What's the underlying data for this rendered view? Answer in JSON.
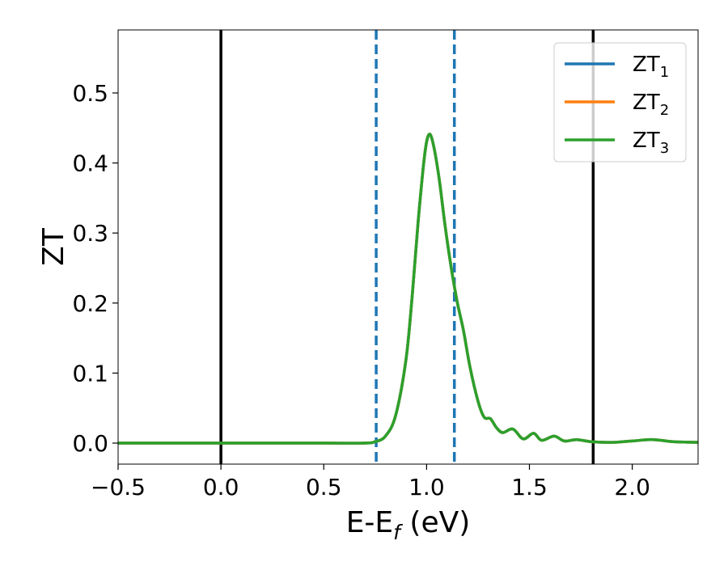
{
  "chart_data": {
    "type": "line",
    "xlabel": "E-E_f (eV)",
    "xlabel_parts": {
      "base": "E-E",
      "sub": "f",
      "tail": " (eV)"
    },
    "ylabel": "ZT",
    "xlim": [
      -0.5,
      2.32
    ],
    "ylim": [
      -0.03,
      0.59
    ],
    "xticks": [
      -0.5,
      0.0,
      0.5,
      1.0,
      1.5,
      2.0
    ],
    "xtick_labels": [
      "−0.5",
      "0.0",
      "0.5",
      "1.0",
      "1.5",
      "2.0"
    ],
    "yticks": [
      0.0,
      0.1,
      0.2,
      0.3,
      0.4,
      0.5
    ],
    "ytick_labels": [
      "0.0",
      "0.1",
      "0.2",
      "0.3",
      "0.4",
      "0.5"
    ],
    "grid": false,
    "legend_position": "top-right",
    "vlines": [
      {
        "x": 0.0,
        "style": "solid",
        "color": "#000000"
      },
      {
        "x": 1.81,
        "style": "solid",
        "color": "#000000"
      },
      {
        "x": 0.755,
        "style": "dashed",
        "color": "#1f77b4"
      },
      {
        "x": 1.135,
        "style": "dashed",
        "color": "#1f77b4"
      }
    ],
    "series": [
      {
        "name": "ZT_1",
        "label_base": "ZT",
        "label_sub": "1",
        "color": "#1f77b4"
      },
      {
        "name": "ZT_2",
        "label_base": "ZT",
        "label_sub": "2",
        "color": "#ff7f0e"
      },
      {
        "name": "ZT_3",
        "label_base": "ZT",
        "label_sub": "3",
        "color": "#2ca02c"
      }
    ],
    "x": [
      -0.5,
      0.0,
      0.5,
      0.7,
      0.75,
      0.8,
      0.85,
      0.9,
      0.93,
      0.96,
      0.99,
      1.01,
      1.03,
      1.06,
      1.09,
      1.12,
      1.15,
      1.18,
      1.21,
      1.25,
      1.28,
      1.31,
      1.34,
      1.37,
      1.42,
      1.47,
      1.52,
      1.56,
      1.62,
      1.67,
      1.73,
      1.8,
      1.9,
      2.0,
      2.1,
      2.2,
      2.32
    ],
    "values": [
      0.0,
      0.0,
      0.0,
      0.0,
      0.002,
      0.01,
      0.04,
      0.12,
      0.21,
      0.32,
      0.41,
      0.44,
      0.43,
      0.38,
      0.31,
      0.25,
      0.2,
      0.16,
      0.11,
      0.06,
      0.037,
      0.035,
      0.022,
      0.015,
      0.02,
      0.006,
      0.014,
      0.004,
      0.01,
      0.003,
      0.005,
      0.002,
      0.001,
      0.003,
      0.005,
      0.002,
      0.001
    ]
  }
}
